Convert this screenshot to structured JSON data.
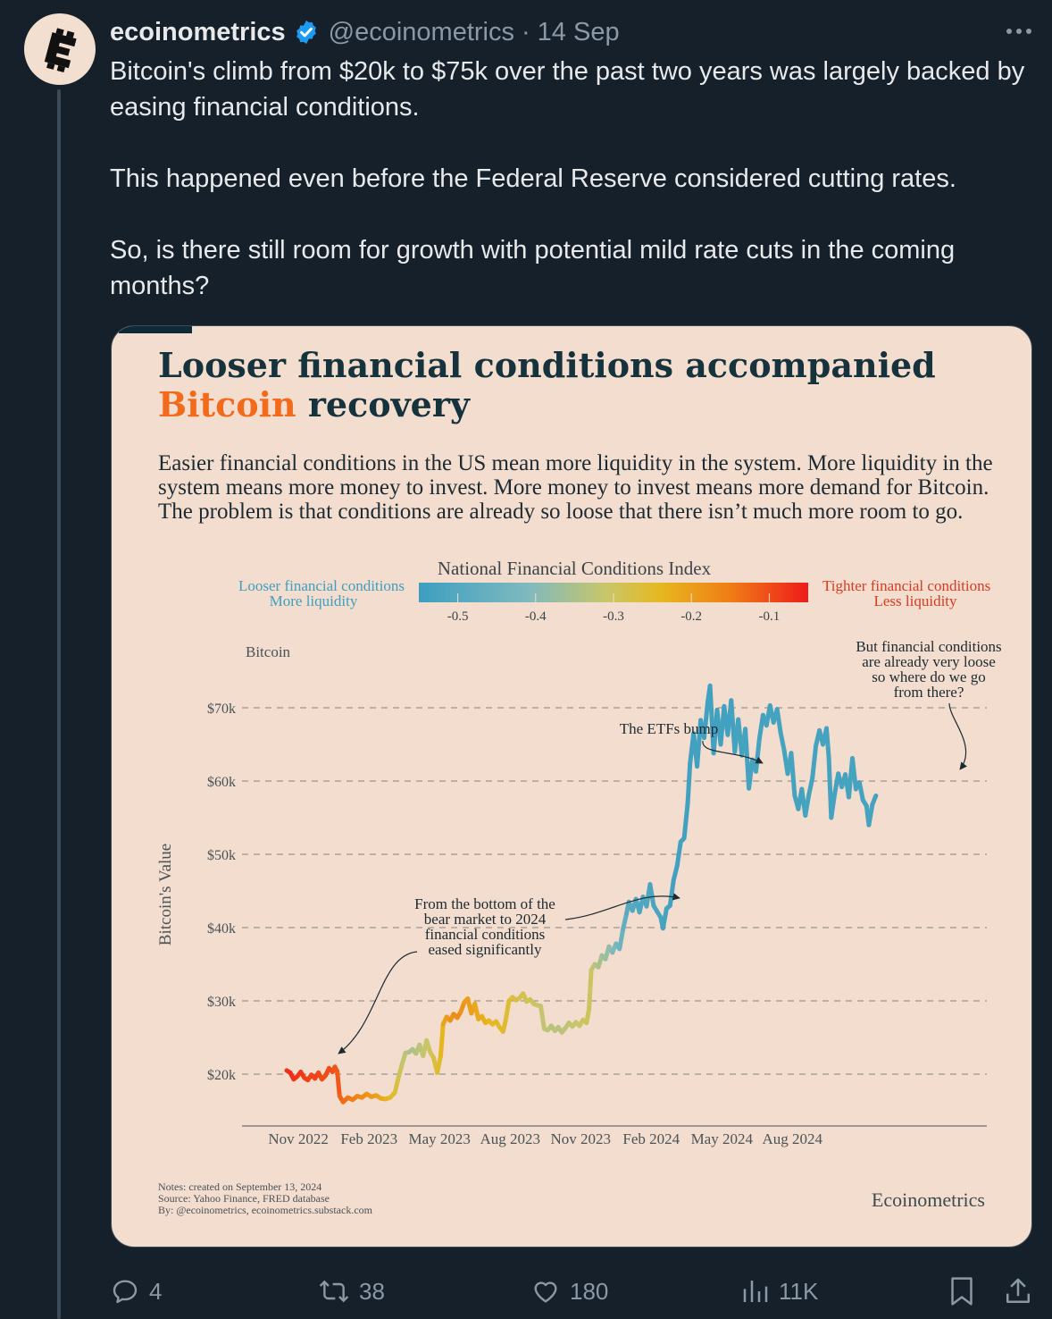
{
  "tweet": {
    "author": {
      "display_name": "ecoinometrics",
      "handle": "@ecoinometrics",
      "verified": true,
      "avatar_icon": "ecoinometrics-logo-icon"
    },
    "separator": "·",
    "date": "14 Sep",
    "more_icon": "more-horizontal-icon",
    "paragraphs": [
      "Bitcoin's climb from $20k to $75k over the past two years was largely backed by easing financial conditions.",
      "This happened even before the Federal Reserve considered cutting rates.",
      "So, is there still room for growth with potential mild rate cuts in the coming months?"
    ],
    "actions": {
      "replies": "4",
      "reposts": "38",
      "likes": "180",
      "views": "11K"
    },
    "colors": {
      "background": "#15202b",
      "text": "#e7e9ea",
      "muted": "#8b98a5",
      "verified": "#1d9bf0"
    }
  },
  "chart_card": {
    "title_line1": "Looser financial conditions accompanied",
    "title_line2_accent": "Bitcoin",
    "title_line2_rest": " recovery",
    "subtitle": "Easier financial conditions in the US mean more liquidity in the system. More liquidity in the system means more money to invest. More money to invest means more demand for Bitcoin. The problem is that conditions are already so loose that there isn’t much more room to go.",
    "legend": {
      "title": "National Financial Conditions Index",
      "ticks": [
        "-0.5",
        "-0.4",
        "-0.3",
        "-0.2",
        "-0.1"
      ],
      "left_label_1": "Looser financial conditions",
      "left_label_2": "More liquidity",
      "right_label_1": "Tighter financial conditions",
      "right_label_2": "Less liquidity"
    },
    "footnote_1": "Notes: created on September 13, 2024",
    "footnote_2": "Source: Yahoo Finance, FRED database",
    "footnote_3": "By: @ecoinometrics, ecoinometrics.substack.com",
    "brand": "Ecoinometrics"
  },
  "chart_data": {
    "type": "line",
    "title": "Looser financial conditions accompanied Bitcoin recovery",
    "series_label": "Bitcoin",
    "ylabel": "Bitcoin's Value",
    "xlabel": "",
    "y_ticks": [
      20000,
      30000,
      40000,
      50000,
      60000,
      70000
    ],
    "y_tick_labels": [
      "$20k",
      "$30k",
      "$40k",
      "$50k",
      "$60k",
      "$70k"
    ],
    "x_tick_labels": [
      "Nov 2022",
      "Feb 2023",
      "May 2023",
      "Aug 2023",
      "Nov 2023",
      "Feb 2024",
      "May 2024",
      "Aug 2024"
    ],
    "ylim": [
      13000,
      76000
    ],
    "xlim_months": [
      0,
      26.5
    ],
    "color_variable": "National Financial Conditions Index",
    "color_range": [
      -0.55,
      -0.05
    ],
    "grid": "horizontal dashed",
    "points": [
      {
        "m": 0.0,
        "v": 20500,
        "nfci": -0.07
      },
      {
        "m": 0.15,
        "v": 20200,
        "nfci": -0.07
      },
      {
        "m": 0.3,
        "v": 19300,
        "nfci": -0.07
      },
      {
        "m": 0.45,
        "v": 19700,
        "nfci": -0.08
      },
      {
        "m": 0.6,
        "v": 20300,
        "nfci": -0.08
      },
      {
        "m": 0.75,
        "v": 19500,
        "nfci": -0.08
      },
      {
        "m": 0.9,
        "v": 19200,
        "nfci": -0.09
      },
      {
        "m": 1.05,
        "v": 19900,
        "nfci": -0.09
      },
      {
        "m": 1.2,
        "v": 19400,
        "nfci": -0.09
      },
      {
        "m": 1.35,
        "v": 20200,
        "nfci": -0.09
      },
      {
        "m": 1.5,
        "v": 19300,
        "nfci": -0.1
      },
      {
        "m": 1.65,
        "v": 19800,
        "nfci": -0.1
      },
      {
        "m": 1.8,
        "v": 20800,
        "nfci": -0.1
      },
      {
        "m": 1.95,
        "v": 20300,
        "nfci": -0.1
      },
      {
        "m": 2.05,
        "v": 21000,
        "nfci": -0.11
      },
      {
        "m": 2.15,
        "v": 20400,
        "nfci": -0.11
      },
      {
        "m": 2.25,
        "v": 17000,
        "nfci": -0.12
      },
      {
        "m": 2.4,
        "v": 16200,
        "nfci": -0.13
      },
      {
        "m": 2.6,
        "v": 16800,
        "nfci": -0.14
      },
      {
        "m": 2.8,
        "v": 16500,
        "nfci": -0.15
      },
      {
        "m": 3.0,
        "v": 17000,
        "nfci": -0.16
      },
      {
        "m": 3.2,
        "v": 16800,
        "nfci": -0.17
      },
      {
        "m": 3.4,
        "v": 17300,
        "nfci": -0.18
      },
      {
        "m": 3.6,
        "v": 16900,
        "nfci": -0.19
      },
      {
        "m": 3.8,
        "v": 17100,
        "nfci": -0.2
      },
      {
        "m": 4.0,
        "v": 16700,
        "nfci": -0.21
      },
      {
        "m": 4.2,
        "v": 16600,
        "nfci": -0.22
      },
      {
        "m": 4.4,
        "v": 16800,
        "nfci": -0.24
      },
      {
        "m": 4.6,
        "v": 17500,
        "nfci": -0.26
      },
      {
        "m": 4.75,
        "v": 19500,
        "nfci": -0.28
      },
      {
        "m": 4.9,
        "v": 21300,
        "nfci": -0.31
      },
      {
        "m": 5.05,
        "v": 22900,
        "nfci": -0.33
      },
      {
        "m": 5.2,
        "v": 23000,
        "nfci": -0.34
      },
      {
        "m": 5.35,
        "v": 23400,
        "nfci": -0.35
      },
      {
        "m": 5.5,
        "v": 22800,
        "nfci": -0.34
      },
      {
        "m": 5.65,
        "v": 24000,
        "nfci": -0.33
      },
      {
        "m": 5.8,
        "v": 22500,
        "nfci": -0.32
      },
      {
        "m": 5.95,
        "v": 24600,
        "nfci": -0.31
      },
      {
        "m": 6.1,
        "v": 23000,
        "nfci": -0.3
      },
      {
        "m": 6.25,
        "v": 22200,
        "nfci": -0.28
      },
      {
        "m": 6.4,
        "v": 20200,
        "nfci": -0.26
      },
      {
        "m": 6.55,
        "v": 22500,
        "nfci": -0.25
      },
      {
        "m": 6.65,
        "v": 26800,
        "nfci": -0.22
      },
      {
        "m": 6.8,
        "v": 27800,
        "nfci": -0.2
      },
      {
        "m": 6.95,
        "v": 27300,
        "nfci": -0.19
      },
      {
        "m": 7.1,
        "v": 28200,
        "nfci": -0.18
      },
      {
        "m": 7.25,
        "v": 27700,
        "nfci": -0.17
      },
      {
        "m": 7.4,
        "v": 28500,
        "nfci": -0.18
      },
      {
        "m": 7.55,
        "v": 29800,
        "nfci": -0.19
      },
      {
        "m": 7.7,
        "v": 30300,
        "nfci": -0.2
      },
      {
        "m": 7.85,
        "v": 28300,
        "nfci": -0.2
      },
      {
        "m": 8.0,
        "v": 29600,
        "nfci": -0.21
      },
      {
        "m": 8.15,
        "v": 27500,
        "nfci": -0.22
      },
      {
        "m": 8.3,
        "v": 27900,
        "nfci": -0.22
      },
      {
        "m": 8.45,
        "v": 27000,
        "nfci": -0.23
      },
      {
        "m": 8.6,
        "v": 27300,
        "nfci": -0.23
      },
      {
        "m": 8.75,
        "v": 26800,
        "nfci": -0.24
      },
      {
        "m": 8.9,
        "v": 27200,
        "nfci": -0.24
      },
      {
        "m": 9.05,
        "v": 26400,
        "nfci": -0.25
      },
      {
        "m": 9.2,
        "v": 25800,
        "nfci": -0.25
      },
      {
        "m": 9.3,
        "v": 27200,
        "nfci": -0.26
      },
      {
        "m": 9.45,
        "v": 30000,
        "nfci": -0.26
      },
      {
        "m": 9.6,
        "v": 30500,
        "nfci": -0.27
      },
      {
        "m": 9.75,
        "v": 30100,
        "nfci": -0.27
      },
      {
        "m": 9.9,
        "v": 30400,
        "nfci": -0.28
      },
      {
        "m": 10.05,
        "v": 31000,
        "nfci": -0.28
      },
      {
        "m": 10.2,
        "v": 29900,
        "nfci": -0.29
      },
      {
        "m": 10.35,
        "v": 30200,
        "nfci": -0.29
      },
      {
        "m": 10.5,
        "v": 29600,
        "nfci": -0.3
      },
      {
        "m": 10.65,
        "v": 29400,
        "nfci": -0.3
      },
      {
        "m": 10.8,
        "v": 29300,
        "nfci": -0.31
      },
      {
        "m": 10.95,
        "v": 26200,
        "nfci": -0.32
      },
      {
        "m": 11.1,
        "v": 26000,
        "nfci": -0.32
      },
      {
        "m": 11.25,
        "v": 26600,
        "nfci": -0.33
      },
      {
        "m": 11.4,
        "v": 25900,
        "nfci": -0.33
      },
      {
        "m": 11.55,
        "v": 26400,
        "nfci": -0.33
      },
      {
        "m": 11.7,
        "v": 25700,
        "nfci": -0.33
      },
      {
        "m": 11.85,
        "v": 26300,
        "nfci": -0.32
      },
      {
        "m": 12.0,
        "v": 27000,
        "nfci": -0.32
      },
      {
        "m": 12.15,
        "v": 26500,
        "nfci": -0.32
      },
      {
        "m": 12.3,
        "v": 27100,
        "nfci": -0.31
      },
      {
        "m": 12.45,
        "v": 26600,
        "nfci": -0.31
      },
      {
        "m": 12.6,
        "v": 27400,
        "nfci": -0.3
      },
      {
        "m": 12.75,
        "v": 27000,
        "nfci": -0.3
      },
      {
        "m": 12.85,
        "v": 28800,
        "nfci": -0.29
      },
      {
        "m": 12.95,
        "v": 34200,
        "nfci": -0.31
      },
      {
        "m": 13.1,
        "v": 35000,
        "nfci": -0.33
      },
      {
        "m": 13.25,
        "v": 34600,
        "nfci": -0.34
      },
      {
        "m": 13.4,
        "v": 36200,
        "nfci": -0.36
      },
      {
        "m": 13.55,
        "v": 35700,
        "nfci": -0.37
      },
      {
        "m": 13.7,
        "v": 37400,
        "nfci": -0.38
      },
      {
        "m": 13.85,
        "v": 36600,
        "nfci": -0.4
      },
      {
        "m": 14.0,
        "v": 37800,
        "nfci": -0.42
      },
      {
        "m": 14.15,
        "v": 37100,
        "nfci": -0.44
      },
      {
        "m": 14.3,
        "v": 39800,
        "nfci": -0.46
      },
      {
        "m": 14.45,
        "v": 41900,
        "nfci": -0.48
      },
      {
        "m": 14.55,
        "v": 43500,
        "nfci": -0.5
      },
      {
        "m": 14.7,
        "v": 42300,
        "nfci": -0.5
      },
      {
        "m": 14.85,
        "v": 43900,
        "nfci": -0.5
      },
      {
        "m": 15.0,
        "v": 42100,
        "nfci": -0.51
      },
      {
        "m": 15.15,
        "v": 44200,
        "nfci": -0.51
      },
      {
        "m": 15.3,
        "v": 42900,
        "nfci": -0.51
      },
      {
        "m": 15.45,
        "v": 45900,
        "nfci": -0.52
      },
      {
        "m": 15.6,
        "v": 43000,
        "nfci": -0.52
      },
      {
        "m": 15.75,
        "v": 42200,
        "nfci": -0.52
      },
      {
        "m": 15.9,
        "v": 41400,
        "nfci": -0.52
      },
      {
        "m": 16.0,
        "v": 39900,
        "nfci": -0.53
      },
      {
        "m": 16.15,
        "v": 42600,
        "nfci": -0.53
      },
      {
        "m": 16.3,
        "v": 43000,
        "nfci": -0.53
      },
      {
        "m": 16.45,
        "v": 46500,
        "nfci": -0.54
      },
      {
        "m": 16.6,
        "v": 48400,
        "nfci": -0.54
      },
      {
        "m": 16.75,
        "v": 51700,
        "nfci": -0.54
      },
      {
        "m": 16.9,
        "v": 52200,
        "nfci": -0.54
      },
      {
        "m": 17.05,
        "v": 57000,
        "nfci": -0.54
      },
      {
        "m": 17.15,
        "v": 62400,
        "nfci": -0.54
      },
      {
        "m": 17.3,
        "v": 66500,
        "nfci": -0.54
      },
      {
        "m": 17.45,
        "v": 62000,
        "nfci": -0.54
      },
      {
        "m": 17.6,
        "v": 68300,
        "nfci": -0.54
      },
      {
        "m": 17.75,
        "v": 65900,
        "nfci": -0.54
      },
      {
        "m": 17.9,
        "v": 70800,
        "nfci": -0.54
      },
      {
        "m": 18.0,
        "v": 73000,
        "nfci": -0.54
      },
      {
        "m": 18.15,
        "v": 63800,
        "nfci": -0.54
      },
      {
        "m": 18.3,
        "v": 69700,
        "nfci": -0.54
      },
      {
        "m": 18.45,
        "v": 65000,
        "nfci": -0.54
      },
      {
        "m": 18.6,
        "v": 70200,
        "nfci": -0.54
      },
      {
        "m": 18.75,
        "v": 66300,
        "nfci": -0.54
      },
      {
        "m": 18.9,
        "v": 71000,
        "nfci": -0.54
      },
      {
        "m": 19.05,
        "v": 64000,
        "nfci": -0.53
      },
      {
        "m": 19.2,
        "v": 68400,
        "nfci": -0.53
      },
      {
        "m": 19.35,
        "v": 63500,
        "nfci": -0.53
      },
      {
        "m": 19.5,
        "v": 67100,
        "nfci": -0.53
      },
      {
        "m": 19.65,
        "v": 59000,
        "nfci": -0.53
      },
      {
        "m": 19.8,
        "v": 62900,
        "nfci": -0.53
      },
      {
        "m": 19.95,
        "v": 61300,
        "nfci": -0.53
      },
      {
        "m": 20.1,
        "v": 65800,
        "nfci": -0.53
      },
      {
        "m": 20.25,
        "v": 69000,
        "nfci": -0.53
      },
      {
        "m": 20.4,
        "v": 67600,
        "nfci": -0.53
      },
      {
        "m": 20.55,
        "v": 70300,
        "nfci": -0.53
      },
      {
        "m": 20.7,
        "v": 68000,
        "nfci": -0.53
      },
      {
        "m": 20.85,
        "v": 69800,
        "nfci": -0.53
      },
      {
        "m": 21.0,
        "v": 66600,
        "nfci": -0.53
      },
      {
        "m": 21.15,
        "v": 64200,
        "nfci": -0.53
      },
      {
        "m": 21.3,
        "v": 61000,
        "nfci": -0.53
      },
      {
        "m": 21.45,
        "v": 63800,
        "nfci": -0.53
      },
      {
        "m": 21.6,
        "v": 58000,
        "nfci": -0.53
      },
      {
        "m": 21.75,
        "v": 56200,
        "nfci": -0.53
      },
      {
        "m": 21.9,
        "v": 58900,
        "nfci": -0.53
      },
      {
        "m": 22.05,
        "v": 55300,
        "nfci": -0.53
      },
      {
        "m": 22.2,
        "v": 58100,
        "nfci": -0.53
      },
      {
        "m": 22.35,
        "v": 60400,
        "nfci": -0.53
      },
      {
        "m": 22.5,
        "v": 64800,
        "nfci": -0.53
      },
      {
        "m": 22.65,
        "v": 66900,
        "nfci": -0.53
      },
      {
        "m": 22.8,
        "v": 65000,
        "nfci": -0.53
      },
      {
        "m": 22.95,
        "v": 67200,
        "nfci": -0.53
      },
      {
        "m": 23.05,
        "v": 63200,
        "nfci": -0.53
      },
      {
        "m": 23.15,
        "v": 55000,
        "nfci": -0.53
      },
      {
        "m": 23.3,
        "v": 58300,
        "nfci": -0.53
      },
      {
        "m": 23.45,
        "v": 61000,
        "nfci": -0.53
      },
      {
        "m": 23.6,
        "v": 59200,
        "nfci": -0.53
      },
      {
        "m": 23.75,
        "v": 60900,
        "nfci": -0.53
      },
      {
        "m": 23.9,
        "v": 57800,
        "nfci": -0.53
      },
      {
        "m": 24.05,
        "v": 63100,
        "nfci": -0.53
      },
      {
        "m": 24.2,
        "v": 58900,
        "nfci": -0.53
      },
      {
        "m": 24.35,
        "v": 59800,
        "nfci": -0.53
      },
      {
        "m": 24.5,
        "v": 57400,
        "nfci": -0.53
      },
      {
        "m": 24.65,
        "v": 56600,
        "nfci": -0.53
      },
      {
        "m": 24.75,
        "v": 54000,
        "nfci": -0.53
      },
      {
        "m": 24.9,
        "v": 56800,
        "nfci": -0.53
      },
      {
        "m": 25.05,
        "v": 58000,
        "nfci": -0.53
      }
    ],
    "annotations": [
      {
        "id": "bottom",
        "text": [
          "From the bottom of the",
          "bear market to 2024",
          "financial conditions",
          "eased significantly"
        ]
      },
      {
        "id": "etf",
        "text": [
          "The ETFs bump"
        ]
      },
      {
        "id": "loose",
        "text": [
          "But financial conditions",
          "are already very loose",
          "so where do we go",
          "from there?"
        ]
      }
    ]
  }
}
